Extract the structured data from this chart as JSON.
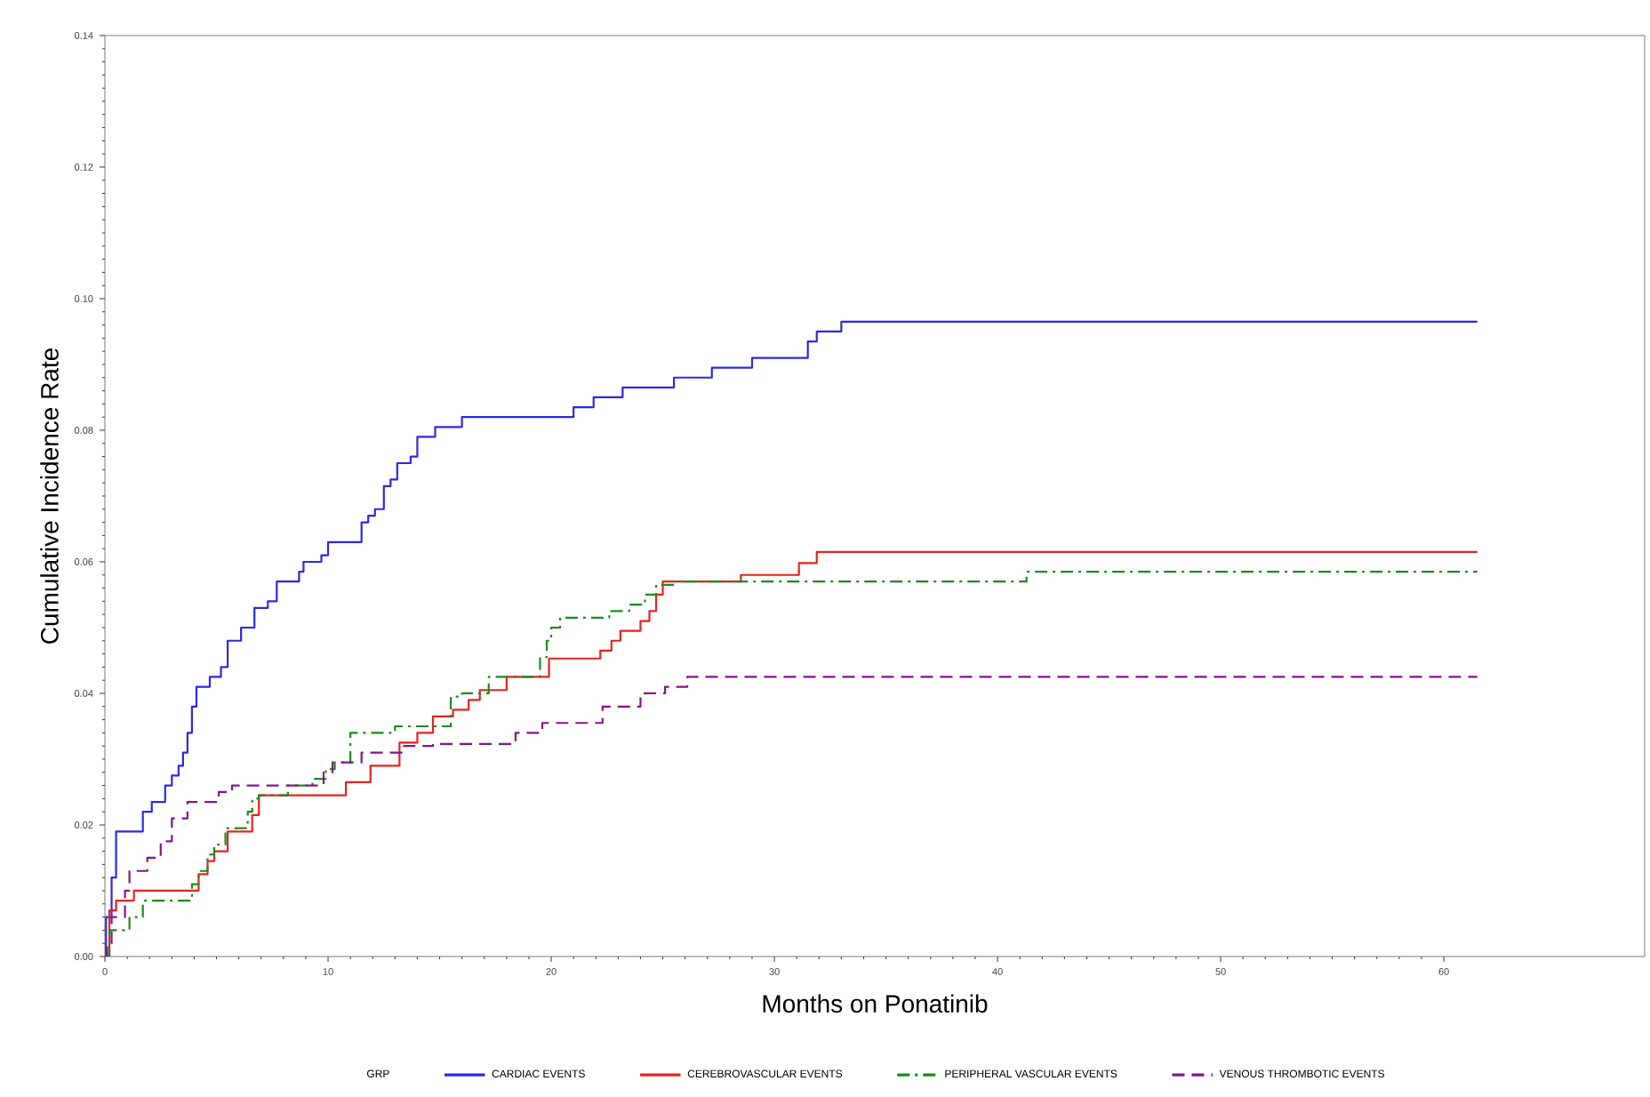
{
  "chart_data": {
    "type": "step",
    "xlabel": "Months on Ponatinib",
    "ylabel": "Cumulative Incidence Rate",
    "legend_title": "GRP",
    "legend": "bottom",
    "grid": false,
    "xlim": [
      0,
      69
    ],
    "xticks": [
      0,
      10,
      20,
      30,
      40,
      50,
      60
    ],
    "ylim": [
      0,
      0.14
    ],
    "yticks": [
      {
        "value": 0,
        "label": "0.00"
      },
      {
        "value": 0.02,
        "label": "0.02"
      },
      {
        "value": 0.04,
        "label": "0.04"
      },
      {
        "value": 0.06,
        "label": "0.06"
      },
      {
        "value": 0.08,
        "label": "0.08"
      },
      {
        "value": 0.1,
        "label": "0.10"
      },
      {
        "value": 0.12,
        "label": "0.12"
      },
      {
        "value": 0.14,
        "label": "0.14"
      }
    ],
    "series": [
      {
        "name": "CARDIAC EVENTS",
        "color": "#2a2ae6",
        "line_style": "solid",
        "x": [
          0,
          0.05,
          0.3,
          0.5,
          1.7,
          2.1,
          2.7,
          3.0,
          3.3,
          3.5,
          3.7,
          3.9,
          4.1,
          4.7,
          5.2,
          5.5,
          6.1,
          6.7,
          7.3,
          7.7,
          8.7,
          8.9,
          9.7,
          10.0,
          11.5,
          11.8,
          12.1,
          12.5,
          12.8,
          13.1,
          13.7,
          14.0,
          14.8,
          16.0,
          21.0,
          21.9,
          23.2,
          25.5,
          27.2,
          29.0,
          31.5,
          31.9,
          33.0,
          61.5
        ],
        "values": [
          0,
          0.006,
          0.012,
          0.019,
          0.022,
          0.0235,
          0.026,
          0.0275,
          0.029,
          0.031,
          0.034,
          0.038,
          0.041,
          0.0425,
          0.044,
          0.048,
          0.05,
          0.053,
          0.054,
          0.057,
          0.0585,
          0.06,
          0.061,
          0.063,
          0.066,
          0.067,
          0.068,
          0.0715,
          0.0725,
          0.075,
          0.076,
          0.079,
          0.0805,
          0.082,
          0.0835,
          0.085,
          0.0865,
          0.088,
          0.0895,
          0.091,
          0.0935,
          0.095,
          0.0965,
          0.0965
        ]
      },
      {
        "name": "CEREBROVASCULAR EVENTS",
        "color": "#e8221e",
        "line_style": "solid",
        "x": [
          0,
          0.2,
          0.5,
          1.3,
          4.2,
          4.6,
          4.9,
          5.5,
          6.6,
          6.9,
          10.8,
          11.9,
          13.2,
          14.0,
          14.7,
          15.6,
          16.3,
          16.8,
          18.0,
          19.9,
          22.2,
          22.7,
          23.1,
          24.0,
          24.4,
          24.7,
          25.0,
          28.5,
          31.1,
          31.9,
          61.5
        ],
        "values": [
          0,
          0.007,
          0.0085,
          0.01,
          0.0125,
          0.0145,
          0.016,
          0.019,
          0.0215,
          0.0245,
          0.0265,
          0.029,
          0.0325,
          0.034,
          0.0365,
          0.0375,
          0.039,
          0.0405,
          0.0425,
          0.0453,
          0.0465,
          0.048,
          0.0495,
          0.051,
          0.0525,
          0.055,
          0.057,
          0.058,
          0.0598,
          0.0615,
          0.0615
        ]
      },
      {
        "name": "PERIPHERAL VASCULAR EVENTS",
        "color": "#1a8c1a",
        "line_style": "dashdot",
        "x": [
          0,
          0.2,
          1.1,
          1.7,
          3.9,
          4.2,
          4.6,
          4.9,
          5.4,
          6.4,
          6.6,
          6.9,
          8.2,
          9.3,
          9.9,
          10.3,
          11.0,
          13.0,
          15.5,
          16.0,
          17.2,
          19.5,
          19.8,
          20.0,
          20.4,
          22.6,
          23.5,
          24.2,
          24.7,
          25.6,
          41.3,
          61.5
        ],
        "values": [
          0,
          0.004,
          0.006,
          0.0085,
          0.011,
          0.013,
          0.0155,
          0.017,
          0.0195,
          0.022,
          0.024,
          0.0245,
          0.026,
          0.027,
          0.0285,
          0.0295,
          0.034,
          0.035,
          0.0395,
          0.04,
          0.0425,
          0.0455,
          0.048,
          0.05,
          0.0515,
          0.0525,
          0.0535,
          0.055,
          0.0565,
          0.057,
          0.0585,
          0.0585
        ]
      },
      {
        "name": "VENOUS THROMBOTIC EVENTS",
        "color": "#84158a",
        "line_style": "dashed",
        "x": [
          0,
          0.1,
          0.3,
          0.9,
          1.1,
          1.9,
          2.5,
          3.0,
          3.7,
          5.1,
          5.7,
          9.8,
          10.2,
          11.5,
          13.4,
          14.7,
          18.4,
          19.6,
          22.3,
          24.0,
          25.1,
          26.1,
          61.5
        ],
        "values": [
          0,
          0.002,
          0.006,
          0.01,
          0.013,
          0.015,
          0.0175,
          0.021,
          0.0235,
          0.025,
          0.026,
          0.028,
          0.0295,
          0.031,
          0.032,
          0.0323,
          0.034,
          0.0355,
          0.038,
          0.04,
          0.041,
          0.0425,
          0.0425
        ]
      }
    ]
  }
}
